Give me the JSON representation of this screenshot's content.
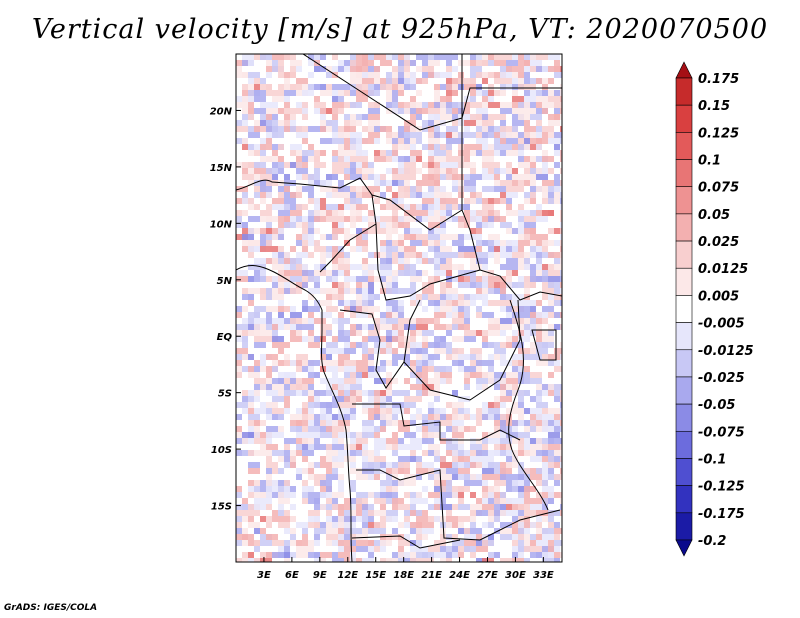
{
  "title": "Vertical velocity [m/s] at 925hPa, VT: 2020070500",
  "credit": "GrADS: IGES/COLA",
  "map": {
    "lon_range": [
      0,
      35
    ],
    "lat_range": [
      -20,
      25
    ],
    "lon_ticks": [
      {
        "value": 3,
        "label": "3E"
      },
      {
        "value": 6,
        "label": "6E"
      },
      {
        "value": 9,
        "label": "9E"
      },
      {
        "value": 12,
        "label": "12E"
      },
      {
        "value": 15,
        "label": "15E"
      },
      {
        "value": 18,
        "label": "18E"
      },
      {
        "value": 21,
        "label": "21E"
      },
      {
        "value": 24,
        "label": "24E"
      },
      {
        "value": 27,
        "label": "27E"
      },
      {
        "value": 30,
        "label": "30E"
      },
      {
        "value": 33,
        "label": "33E"
      }
    ],
    "lat_ticks": [
      {
        "value": 20,
        "label": "20N"
      },
      {
        "value": 15,
        "label": "15N"
      },
      {
        "value": 10,
        "label": "10N"
      },
      {
        "value": 5,
        "label": "5N"
      },
      {
        "value": 0,
        "label": "EQ"
      },
      {
        "value": -5,
        "label": "5S"
      },
      {
        "value": -10,
        "label": "10S"
      },
      {
        "value": -15,
        "label": "15S"
      }
    ]
  },
  "colorbar": {
    "labels": [
      "0.175",
      "0.15",
      "0.125",
      "0.1",
      "0.075",
      "0.05",
      "0.025",
      "0.0125",
      "0.005",
      "-0.005",
      "-0.0125",
      "-0.025",
      "-0.05",
      "-0.075",
      "-0.1",
      "-0.125",
      "-0.175",
      "-0.2"
    ],
    "colors": [
      "#a50f15",
      "#c62b2b",
      "#d94040",
      "#e35a5a",
      "#e87575",
      "#ee9292",
      "#f3b0b0",
      "#f8cfcf",
      "#fce8e8",
      "#ffffff",
      "#e6e6fb",
      "#c8c8f5",
      "#a9a9ee",
      "#8b8be6",
      "#6c6cdd",
      "#4f4fd1",
      "#3232bf",
      "#1b1ba6",
      "#0a0a8c"
    ]
  }
}
